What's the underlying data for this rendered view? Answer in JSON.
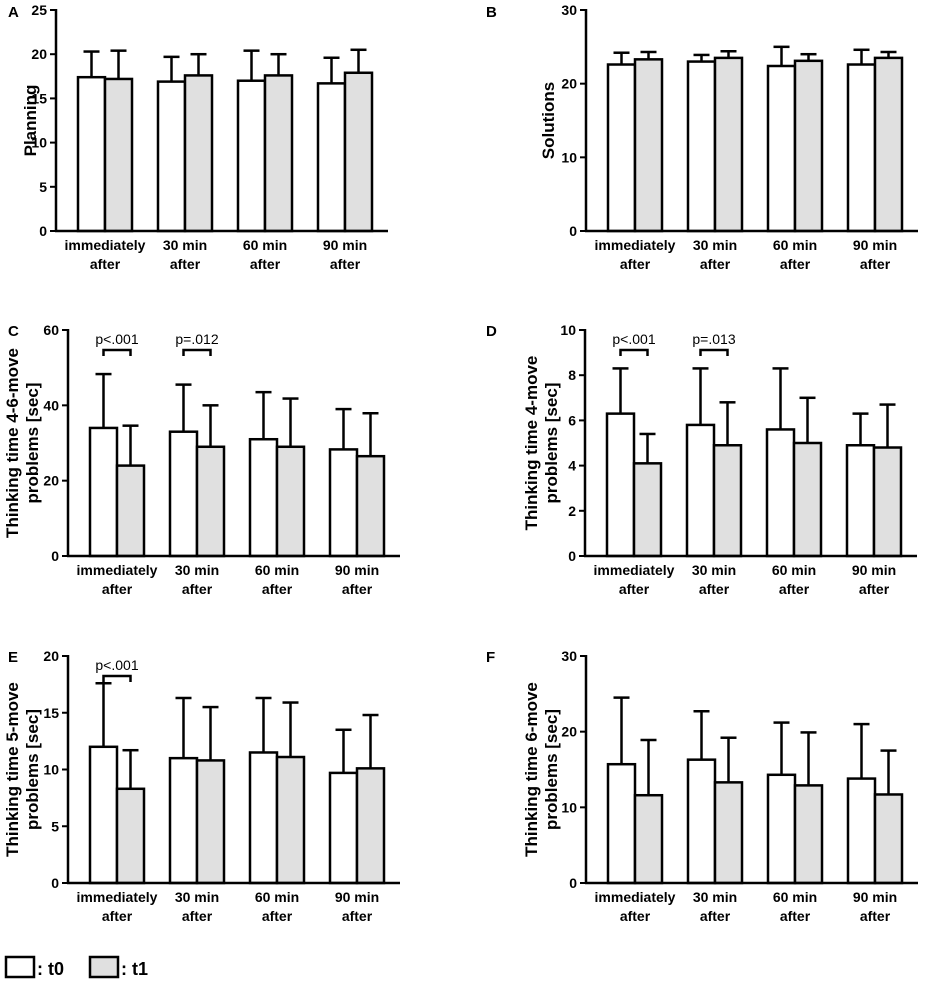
{
  "legend": {
    "t0_label": ": t0",
    "t1_label": ": t1",
    "t0_color": "#ffffff",
    "t1_color": "#e0e0e0"
  },
  "categories": [
    [
      "immediately",
      "after"
    ],
    [
      "30 min",
      "after"
    ],
    [
      "60 min",
      "after"
    ],
    [
      "90 min",
      "after"
    ]
  ],
  "chart_data": [
    {
      "panel": "A",
      "type": "bar",
      "ylabel": [
        "Planning"
      ],
      "ylim": [
        0,
        25
      ],
      "yticks": [
        0,
        5,
        10,
        15,
        20,
        25
      ],
      "series": [
        {
          "name": "t0",
          "values": [
            17.4,
            16.9,
            17.0,
            16.7
          ],
          "err": [
            2.9,
            2.8,
            3.4,
            2.9
          ]
        },
        {
          "name": "t1",
          "values": [
            17.2,
            17.6,
            17.6,
            17.9
          ],
          "err": [
            3.2,
            2.4,
            2.4,
            2.6
          ]
        }
      ],
      "annotations": []
    },
    {
      "panel": "B",
      "type": "bar",
      "ylabel": [
        "Solutions"
      ],
      "ylim": [
        0,
        30
      ],
      "yticks": [
        0,
        10,
        20,
        30
      ],
      "series": [
        {
          "name": "t0",
          "values": [
            22.6,
            23.0,
            22.4,
            22.6
          ],
          "err": [
            1.6,
            0.9,
            2.6,
            2.0
          ]
        },
        {
          "name": "t1",
          "values": [
            23.3,
            23.5,
            23.1,
            23.5
          ],
          "err": [
            1.0,
            0.9,
            0.9,
            0.8
          ]
        }
      ],
      "annotations": []
    },
    {
      "panel": "C",
      "type": "bar",
      "ylabel": [
        "Thinking time 4-6-move",
        "problems [sec]"
      ],
      "ylim": [
        0,
        60
      ],
      "yticks": [
        0,
        20,
        40,
        60
      ],
      "series": [
        {
          "name": "t0",
          "values": [
            34.0,
            33.0,
            31.0,
            28.3
          ],
          "err": [
            14.3,
            12.5,
            12.5,
            10.7
          ]
        },
        {
          "name": "t1",
          "values": [
            24.0,
            29.0,
            29.0,
            26.5
          ],
          "err": [
            10.6,
            11.0,
            12.8,
            11.4
          ]
        }
      ],
      "annotations": [
        {
          "category": 0,
          "text": "p<.001"
        },
        {
          "category": 1,
          "text": "p=.012"
        }
      ]
    },
    {
      "panel": "D",
      "type": "bar",
      "ylabel": [
        "Thinking time 4-move",
        "problems [sec]"
      ],
      "ylim": [
        0,
        10
      ],
      "yticks": [
        0,
        2,
        4,
        6,
        8,
        10
      ],
      "series": [
        {
          "name": "t0",
          "values": [
            6.3,
            5.8,
            5.6,
            4.9
          ],
          "err": [
            2.0,
            2.5,
            2.7,
            1.4
          ]
        },
        {
          "name": "t1",
          "values": [
            4.1,
            4.9,
            5.0,
            4.8
          ],
          "err": [
            1.3,
            1.9,
            2.0,
            1.9
          ]
        }
      ],
      "annotations": [
        {
          "category": 0,
          "text": "p<.001"
        },
        {
          "category": 1,
          "text": "p=.013"
        }
      ]
    },
    {
      "panel": "E",
      "type": "bar",
      "ylabel": [
        "Thinking time 5-move",
        "problems [sec]"
      ],
      "ylim": [
        0,
        20
      ],
      "yticks": [
        0,
        5,
        10,
        15,
        20
      ],
      "series": [
        {
          "name": "t0",
          "values": [
            12.0,
            11.0,
            11.5,
            9.7
          ],
          "err": [
            5.6,
            5.3,
            4.8,
            3.8
          ]
        },
        {
          "name": "t1",
          "values": [
            8.3,
            10.8,
            11.1,
            10.1
          ],
          "err": [
            3.4,
            4.7,
            4.8,
            4.7
          ]
        }
      ],
      "annotations": [
        {
          "category": 0,
          "text": "p<.001"
        }
      ]
    },
    {
      "panel": "F",
      "type": "bar",
      "ylabel": [
        "Thinking time 6-move",
        "problems [sec]"
      ],
      "ylim": [
        0,
        30
      ],
      "yticks": [
        0,
        10,
        20,
        30
      ],
      "series": [
        {
          "name": "t0",
          "values": [
            15.7,
            16.3,
            14.3,
            13.8
          ],
          "err": [
            8.8,
            6.4,
            6.9,
            7.2
          ]
        },
        {
          "name": "t1",
          "values": [
            11.6,
            13.3,
            12.9,
            11.7
          ],
          "err": [
            7.3,
            5.9,
            7.0,
            5.8
          ]
        }
      ],
      "annotations": []
    }
  ]
}
